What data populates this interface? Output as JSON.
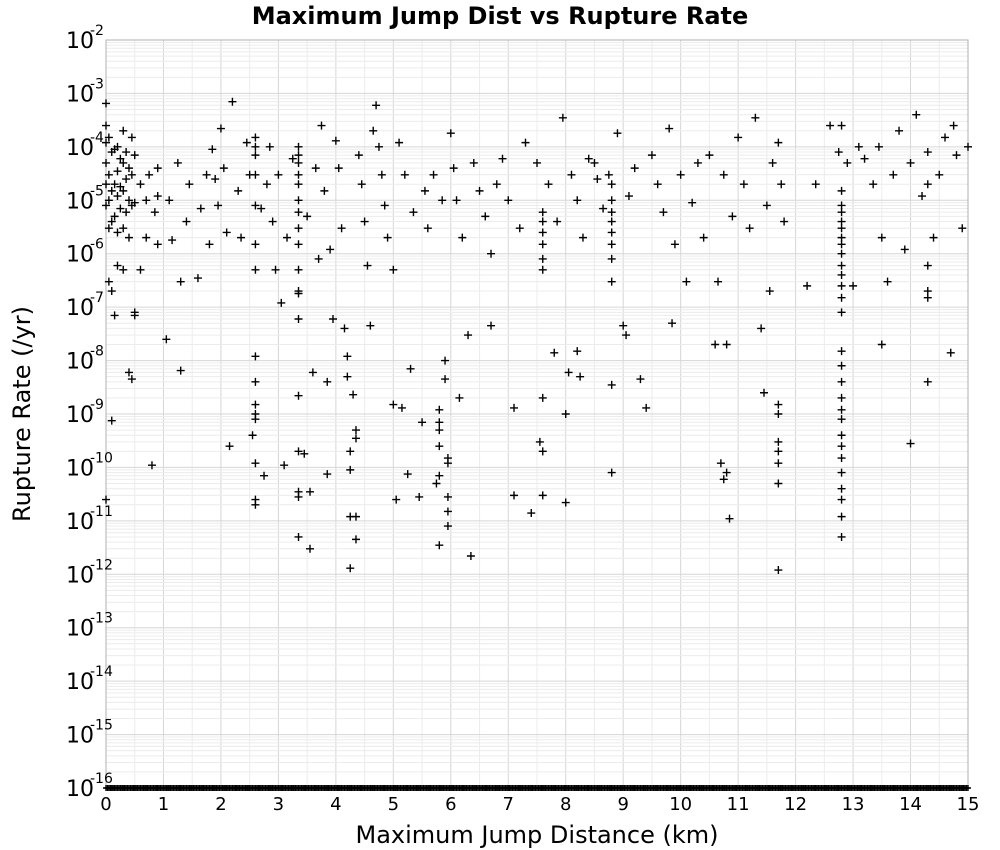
{
  "chart_data": {
    "type": "scatter",
    "title": "Maximum Jump Dist vs Rupture Rate",
    "xlabel": "Maximum Jump Distance (km)",
    "ylabel": "Rupture Rate (/yr)",
    "xlim": [
      0,
      15
    ],
    "ylim": [
      1e-16,
      0.01
    ],
    "y_scale": "log",
    "grid": true,
    "marker": "plus",
    "x_ticks": [
      "0",
      "1",
      "2",
      "3",
      "4",
      "5",
      "6",
      "7",
      "8",
      "9",
      "10",
      "11",
      "12",
      "13",
      "14",
      "15"
    ],
    "y_ticks": [
      {
        "base": "10",
        "exp": "-2"
      },
      {
        "base": "10",
        "exp": "-3"
      },
      {
        "base": "10",
        "exp": "-4"
      },
      {
        "base": "10",
        "exp": "-5"
      },
      {
        "base": "10",
        "exp": "-6"
      },
      {
        "base": "10",
        "exp": "-7"
      },
      {
        "base": "10",
        "exp": "-8"
      },
      {
        "base": "10",
        "exp": "-9"
      },
      {
        "base": "10",
        "exp": "-10"
      },
      {
        "base": "10",
        "exp": "-11"
      },
      {
        "base": "10",
        "exp": "-12"
      },
      {
        "base": "10",
        "exp": "-13"
      },
      {
        "base": "10",
        "exp": "-14"
      },
      {
        "base": "10",
        "exp": "-15"
      },
      {
        "base": "10",
        "exp": "-16"
      }
    ],
    "points": [
      [
        0.0,
        0.00065
      ],
      [
        0.0,
        0.00025
      ],
      [
        0.0,
        0.00012
      ],
      [
        0.0,
        5e-05
      ],
      [
        0.0,
        2e-05
      ],
      [
        0.0,
        8e-06
      ],
      [
        0.0,
        2.5e-11
      ],
      [
        0.05,
        0.00015
      ],
      [
        0.05,
        3e-05
      ],
      [
        0.05,
        1e-05
      ],
      [
        0.05,
        3e-06
      ],
      [
        0.05,
        3e-07
      ],
      [
        0.1,
        8e-05
      ],
      [
        0.1,
        1.5e-05
      ],
      [
        0.1,
        4e-06
      ],
      [
        0.1,
        2e-07
      ],
      [
        0.1,
        7.5e-10
      ],
      [
        0.15,
        9e-05
      ],
      [
        0.15,
        2e-05
      ],
      [
        0.15,
        5e-06
      ],
      [
        0.15,
        7e-08
      ],
      [
        0.2,
        0.0001
      ],
      [
        0.2,
        3.5e-05
      ],
      [
        0.2,
        1.2e-05
      ],
      [
        0.2,
        2.5e-06
      ],
      [
        0.2,
        6e-07
      ],
      [
        0.25,
        6e-05
      ],
      [
        0.25,
        1.8e-05
      ],
      [
        0.25,
        7e-06
      ],
      [
        0.3,
        0.0002
      ],
      [
        0.3,
        5e-05
      ],
      [
        0.3,
        1.5e-05
      ],
      [
        0.3,
        3e-06
      ],
      [
        0.3,
        5e-07
      ],
      [
        0.35,
        8e-05
      ],
      [
        0.35,
        2.5e-05
      ],
      [
        0.35,
        6e-06
      ],
      [
        0.4,
        4e-05
      ],
      [
        0.4,
        1e-05
      ],
      [
        0.4,
        2e-06
      ],
      [
        0.4,
        6e-09
      ],
      [
        0.45,
        0.00015
      ],
      [
        0.45,
        3e-05
      ],
      [
        0.45,
        8e-06
      ],
      [
        0.45,
        4.5e-09
      ],
      [
        0.5,
        7e-05
      ],
      [
        0.5,
        9e-06
      ],
      [
        0.5,
        7e-08
      ],
      [
        0.5,
        8e-08
      ],
      [
        0.6,
        2e-05
      ],
      [
        0.6,
        5e-07
      ],
      [
        0.7,
        1e-05
      ],
      [
        0.7,
        2e-06
      ],
      [
        0.75,
        3e-05
      ],
      [
        0.8,
        1.1e-10
      ],
      [
        0.85,
        6e-06
      ],
      [
        0.9,
        4e-05
      ],
      [
        0.9,
        1.2e-05
      ],
      [
        0.9,
        1.5e-06
      ],
      [
        1.05,
        2.5e-08
      ],
      [
        1.1,
        1e-05
      ],
      [
        1.15,
        1.8e-06
      ],
      [
        1.25,
        5e-05
      ],
      [
        1.3,
        3e-07
      ],
      [
        1.3,
        6.5e-09
      ],
      [
        1.4,
        4e-06
      ],
      [
        1.45,
        2e-05
      ],
      [
        1.6,
        3.5e-07
      ],
      [
        1.65,
        7e-06
      ],
      [
        1.75,
        3e-05
      ],
      [
        1.8,
        1.5e-06
      ],
      [
        1.85,
        9e-05
      ],
      [
        1.9,
        2.5e-05
      ],
      [
        1.95,
        8e-06
      ],
      [
        2.0,
        0.00022
      ],
      [
        2.05,
        4e-05
      ],
      [
        2.1,
        2.5e-06
      ],
      [
        2.15,
        2.5e-10
      ],
      [
        2.2,
        0.0007
      ],
      [
        2.3,
        1.5e-05
      ],
      [
        2.35,
        2e-06
      ],
      [
        2.45,
        0.00012
      ],
      [
        2.5,
        3e-05
      ],
      [
        2.55,
        4e-10
      ],
      [
        2.6,
        0.00015
      ],
      [
        2.6,
        0.0001
      ],
      [
        2.6,
        7e-05
      ],
      [
        2.6,
        3e-05
      ],
      [
        2.6,
        8e-06
      ],
      [
        2.6,
        1.5e-06
      ],
      [
        2.6,
        5e-07
      ],
      [
        2.6,
        1.2e-08
      ],
      [
        2.6,
        4e-09
      ],
      [
        2.6,
        1.5e-09
      ],
      [
        2.6,
        1e-09
      ],
      [
        2.6,
        8e-10
      ],
      [
        2.6,
        1.2e-10
      ],
      [
        2.6,
        2.5e-11
      ],
      [
        2.6,
        2e-11
      ],
      [
        2.7,
        7e-06
      ],
      [
        2.75,
        7e-11
      ],
      [
        2.8,
        2e-05
      ],
      [
        2.85,
        0.0001
      ],
      [
        2.9,
        4e-06
      ],
      [
        2.95,
        5e-07
      ],
      [
        3.0,
        3e-05
      ],
      [
        3.05,
        1.2e-07
      ],
      [
        3.1,
        1.1e-10
      ],
      [
        3.15,
        2e-06
      ],
      [
        3.25,
        6e-05
      ],
      [
        3.35,
        0.0001
      ],
      [
        3.35,
        7e-05
      ],
      [
        3.35,
        5e-05
      ],
      [
        3.35,
        3e-05
      ],
      [
        3.35,
        2e-05
      ],
      [
        3.35,
        1e-05
      ],
      [
        3.35,
        6e-06
      ],
      [
        3.35,
        3e-06
      ],
      [
        3.35,
        1.5e-06
      ],
      [
        3.35,
        5e-07
      ],
      [
        3.35,
        2e-07
      ],
      [
        3.35,
        1.8e-07
      ],
      [
        3.35,
        6e-08
      ],
      [
        3.35,
        2.2e-09
      ],
      [
        3.35,
        2e-10
      ],
      [
        3.35,
        3.5e-11
      ],
      [
        3.35,
        2.8e-11
      ],
      [
        3.35,
        5e-12
      ],
      [
        3.45,
        1.8e-10
      ],
      [
        3.5,
        5e-06
      ],
      [
        3.55,
        3.5e-11
      ],
      [
        3.55,
        3e-12
      ],
      [
        3.6,
        6e-09
      ],
      [
        3.65,
        4e-05
      ],
      [
        3.7,
        8e-07
      ],
      [
        3.75,
        0.00025
      ],
      [
        3.8,
        1.5e-05
      ],
      [
        3.85,
        4e-09
      ],
      [
        3.85,
        7.5e-11
      ],
      [
        3.9,
        1.2e-06
      ],
      [
        3.95,
        6e-08
      ],
      [
        4.0,
        0.00013
      ],
      [
        4.05,
        4e-05
      ],
      [
        4.1,
        3e-06
      ],
      [
        4.15,
        4e-08
      ],
      [
        4.2,
        5e-09
      ],
      [
        4.2,
        1.2e-08
      ],
      [
        4.25,
        2e-10
      ],
      [
        4.25,
        9e-11
      ],
      [
        4.25,
        1.2e-11
      ],
      [
        4.25,
        1.3e-12
      ],
      [
        4.3,
        2.3e-09
      ],
      [
        4.35,
        5e-10
      ],
      [
        4.35,
        3.5e-10
      ],
      [
        4.35,
        1.2e-11
      ],
      [
        4.35,
        4.5e-12
      ],
      [
        4.4,
        7e-05
      ],
      [
        4.45,
        2e-05
      ],
      [
        4.5,
        4e-06
      ],
      [
        4.55,
        6e-07
      ],
      [
        4.6,
        4.5e-08
      ],
      [
        4.65,
        0.0002
      ],
      [
        4.7,
        0.0006
      ],
      [
        4.75,
        0.0001
      ],
      [
        4.8,
        3e-05
      ],
      [
        4.85,
        8e-06
      ],
      [
        4.9,
        2e-06
      ],
      [
        5.0,
        5e-07
      ],
      [
        5.0,
        1.5e-09
      ],
      [
        5.05,
        2.5e-11
      ],
      [
        5.1,
        0.00012
      ],
      [
        5.15,
        1.3e-09
      ],
      [
        5.2,
        3e-05
      ],
      [
        5.25,
        7.5e-11
      ],
      [
        5.3,
        7e-09
      ],
      [
        5.35,
        6e-06
      ],
      [
        5.45,
        2.8e-11
      ],
      [
        5.5,
        7e-10
      ],
      [
        5.55,
        1.5e-05
      ],
      [
        5.6,
        3e-06
      ],
      [
        5.7,
        3e-05
      ],
      [
        5.75,
        5e-11
      ],
      [
        5.8,
        1.2e-09
      ],
      [
        5.8,
        7e-10
      ],
      [
        5.8,
        5e-10
      ],
      [
        5.8,
        2.5e-10
      ],
      [
        5.8,
        7e-11
      ],
      [
        5.8,
        3.5e-12
      ],
      [
        5.85,
        1e-05
      ],
      [
        5.9,
        1e-08
      ],
      [
        5.9,
        4.5e-09
      ],
      [
        5.95,
        1.5e-10
      ],
      [
        5.95,
        1.2e-10
      ],
      [
        5.95,
        2.8e-11
      ],
      [
        5.95,
        1.5e-11
      ],
      [
        5.95,
        8e-12
      ],
      [
        6.0,
        0.00018
      ],
      [
        6.05,
        4e-05
      ],
      [
        6.1,
        1e-05
      ],
      [
        6.15,
        2e-09
      ],
      [
        6.2,
        2e-06
      ],
      [
        6.3,
        3e-08
      ],
      [
        6.35,
        2.2e-12
      ],
      [
        6.4,
        5e-05
      ],
      [
        6.5,
        1.5e-05
      ],
      [
        6.6,
        5e-06
      ],
      [
        6.7,
        4.5e-08
      ],
      [
        6.7,
        1e-06
      ],
      [
        6.8,
        2e-05
      ],
      [
        6.9,
        6e-05
      ],
      [
        7.0,
        1e-05
      ],
      [
        7.1,
        1.3e-09
      ],
      [
        7.1,
        3e-11
      ],
      [
        7.2,
        3e-06
      ],
      [
        7.3,
        0.00012
      ],
      [
        7.4,
        1.4e-11
      ],
      [
        7.5,
        5e-05
      ],
      [
        7.55,
        3e-10
      ],
      [
        7.6,
        2e-09
      ],
      [
        7.6,
        2e-10
      ],
      [
        7.6,
        3e-11
      ],
      [
        7.6,
        6e-06
      ],
      [
        7.6,
        4e-06
      ],
      [
        7.6,
        2.5e-06
      ],
      [
        7.6,
        1.5e-06
      ],
      [
        7.6,
        8e-07
      ],
      [
        7.6,
        5e-07
      ],
      [
        7.7,
        2e-05
      ],
      [
        7.8,
        1.4e-08
      ],
      [
        7.85,
        4e-06
      ],
      [
        7.95,
        0.00035
      ],
      [
        8.0,
        2.2e-11
      ],
      [
        8.0,
        1e-09
      ],
      [
        8.05,
        6e-09
      ],
      [
        8.1,
        3e-05
      ],
      [
        8.2,
        1e-05
      ],
      [
        8.2,
        1.5e-08
      ],
      [
        8.25,
        5e-09
      ],
      [
        8.3,
        2e-06
      ],
      [
        8.4,
        6e-05
      ],
      [
        8.5,
        5e-05
      ],
      [
        8.55,
        2.5e-05
      ],
      [
        8.65,
        7e-06
      ],
      [
        8.75,
        3e-05
      ],
      [
        8.8,
        8e-11
      ],
      [
        8.8,
        3.5e-09
      ],
      [
        8.8,
        2e-05
      ],
      [
        8.8,
        1e-05
      ],
      [
        8.8,
        6e-06
      ],
      [
        8.8,
        4e-06
      ],
      [
        8.8,
        2.5e-06
      ],
      [
        8.8,
        1.5e-06
      ],
      [
        8.8,
        8e-07
      ],
      [
        8.8,
        3e-07
      ],
      [
        8.9,
        0.00018
      ],
      [
        9.0,
        4.5e-08
      ],
      [
        9.05,
        3e-08
      ],
      [
        9.1,
        1.2e-05
      ],
      [
        9.2,
        4e-05
      ],
      [
        9.3,
        4.5e-09
      ],
      [
        9.4,
        1.3e-09
      ],
      [
        9.5,
        7e-05
      ],
      [
        9.6,
        2e-05
      ],
      [
        9.7,
        6e-06
      ],
      [
        9.8,
        0.00022
      ],
      [
        9.85,
        5e-08
      ],
      [
        9.9,
        1.5e-06
      ],
      [
        10.0,
        3e-05
      ],
      [
        10.1,
        3e-07
      ],
      [
        10.2,
        9e-06
      ],
      [
        10.3,
        5e-05
      ],
      [
        10.4,
        2e-06
      ],
      [
        10.5,
        7e-05
      ],
      [
        10.6,
        2e-08
      ],
      [
        10.65,
        3e-07
      ],
      [
        10.7,
        1.2e-10
      ],
      [
        10.75,
        6e-11
      ],
      [
        10.75,
        3e-05
      ],
      [
        10.8,
        2e-08
      ],
      [
        10.8,
        8e-11
      ],
      [
        10.85,
        1.1e-11
      ],
      [
        10.9,
        5e-06
      ],
      [
        11.0,
        0.00015
      ],
      [
        11.1,
        2e-05
      ],
      [
        11.2,
        3e-06
      ],
      [
        11.3,
        0.00035
      ],
      [
        11.4,
        4e-08
      ],
      [
        11.45,
        2.5e-09
      ],
      [
        11.5,
        8e-06
      ],
      [
        11.55,
        2e-07
      ],
      [
        11.6,
        5e-05
      ],
      [
        11.7,
        0.00012
      ],
      [
        11.7,
        1.5e-09
      ],
      [
        11.7,
        1e-09
      ],
      [
        11.7,
        3e-10
      ],
      [
        11.7,
        2e-10
      ],
      [
        11.7,
        1.2e-10
      ],
      [
        11.7,
        5e-11
      ],
      [
        11.7,
        1.2e-12
      ],
      [
        11.75,
        2e-05
      ],
      [
        11.8,
        4e-06
      ],
      [
        12.2,
        2.5e-07
      ],
      [
        12.35,
        2e-05
      ],
      [
        12.6,
        0.00025
      ],
      [
        12.75,
        8e-05
      ],
      [
        12.8,
        0.00025
      ],
      [
        12.8,
        1.5e-05
      ],
      [
        12.8,
        8e-06
      ],
      [
        12.8,
        6e-06
      ],
      [
        12.8,
        4e-06
      ],
      [
        12.8,
        3e-06
      ],
      [
        12.8,
        2e-06
      ],
      [
        12.8,
        1.5e-06
      ],
      [
        12.8,
        1e-06
      ],
      [
        12.8,
        6e-07
      ],
      [
        12.8,
        4e-07
      ],
      [
        12.8,
        2.5e-07
      ],
      [
        12.8,
        1.5e-07
      ],
      [
        12.8,
        8e-08
      ],
      [
        12.8,
        1.5e-08
      ],
      [
        12.8,
        8e-09
      ],
      [
        12.8,
        4e-09
      ],
      [
        12.8,
        2e-09
      ],
      [
        12.8,
        1.2e-09
      ],
      [
        12.8,
        8e-10
      ],
      [
        12.8,
        4e-10
      ],
      [
        12.8,
        2.5e-10
      ],
      [
        12.8,
        1.5e-10
      ],
      [
        12.8,
        8e-11
      ],
      [
        12.8,
        4e-11
      ],
      [
        12.8,
        2.5e-11
      ],
      [
        12.8,
        1.2e-11
      ],
      [
        12.8,
        5e-12
      ],
      [
        12.9,
        5e-05
      ],
      [
        13.0,
        2.5e-07
      ],
      [
        13.1,
        0.0001
      ],
      [
        13.2,
        6e-05
      ],
      [
        13.35,
        2e-05
      ],
      [
        13.45,
        0.0001
      ],
      [
        13.5,
        2e-08
      ],
      [
        13.5,
        2e-06
      ],
      [
        13.6,
        3e-07
      ],
      [
        13.7,
        3e-05
      ],
      [
        13.8,
        0.0002
      ],
      [
        13.9,
        1.2e-06
      ],
      [
        14.0,
        5e-05
      ],
      [
        14.0,
        2.8e-10
      ],
      [
        14.1,
        0.0004
      ],
      [
        14.2,
        1.2e-05
      ],
      [
        14.3,
        8e-05
      ],
      [
        14.3,
        2e-05
      ],
      [
        14.3,
        6e-07
      ],
      [
        14.3,
        2e-07
      ],
      [
        14.3,
        1.5e-07
      ],
      [
        14.3,
        4e-09
      ],
      [
        14.4,
        2e-06
      ],
      [
        14.5,
        3e-05
      ],
      [
        14.6,
        0.00015
      ],
      [
        14.7,
        1.4e-08
      ],
      [
        14.75,
        0.00025
      ],
      [
        14.8,
        7e-05
      ],
      [
        14.9,
        3e-06
      ],
      [
        15.0,
        0.0001
      ]
    ],
    "floor_value": 1e-16
  }
}
